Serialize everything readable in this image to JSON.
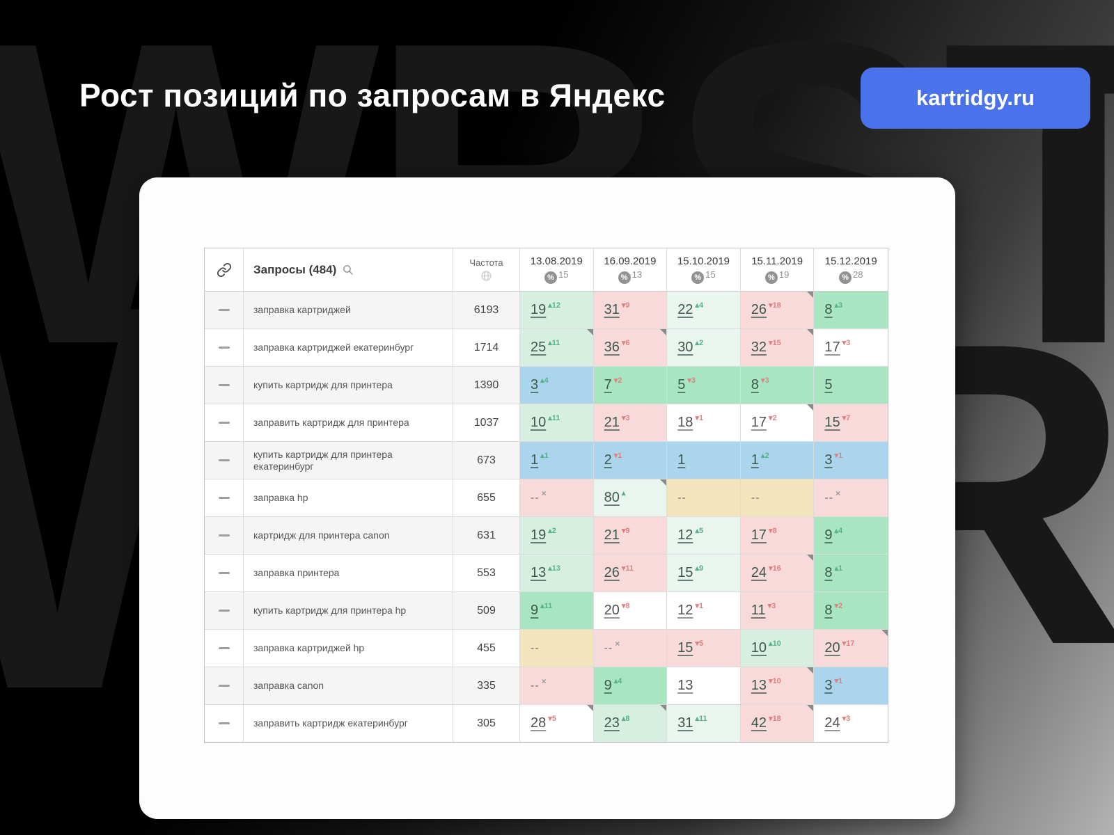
{
  "title": "Рост позиций по запросам в Яндекс",
  "badge_label": "kartridgy.ru",
  "watermark_text": "WBSTR",
  "colors": {
    "badge_blue": "#4a72ea",
    "cell_green": "#a7e6c0",
    "cell_green_light": "#d7efe1",
    "cell_green_pale": "#e9f5ee",
    "cell_pink": "#f9dada",
    "cell_blue": "#abd4ed",
    "cell_tan": "#f3e4bc",
    "delta_up": "#55b28a",
    "delta_down": "#df8080"
  },
  "table": {
    "header": {
      "link_icon": "link-icon",
      "queries_label": "Запросы (484)",
      "frequency_label": "Частота",
      "dates": [
        {
          "date": "13.08.2019",
          "percent": "15"
        },
        {
          "date": "16.09.2019",
          "percent": "13"
        },
        {
          "date": "15.10.2019",
          "percent": "15"
        },
        {
          "date": "15.11.2019",
          "percent": "19"
        },
        {
          "date": "15.12.2019",
          "percent": "28"
        }
      ]
    },
    "rows": [
      {
        "query": "заправка картриджей",
        "frequency": "6193",
        "cells": [
          {
            "pos": "19",
            "dir": "up",
            "delta": "12",
            "bg": "green-light"
          },
          {
            "pos": "31",
            "dir": "down",
            "delta": "9",
            "bg": "pink"
          },
          {
            "pos": "22",
            "dir": "up",
            "delta": "4",
            "bg": "green-pale"
          },
          {
            "pos": "26",
            "dir": "down",
            "delta": "18",
            "bg": "pink",
            "corner": true
          },
          {
            "pos": "8",
            "dir": "up",
            "delta": "3",
            "bg": "green"
          }
        ]
      },
      {
        "query": "заправка картриджей екатеринбург",
        "frequency": "1714",
        "cells": [
          {
            "pos": "25",
            "dir": "up",
            "delta": "11",
            "bg": "green-light",
            "corner": true
          },
          {
            "pos": "36",
            "dir": "down",
            "delta": "6",
            "bg": "pink",
            "corner": true
          },
          {
            "pos": "30",
            "dir": "up",
            "delta": "2",
            "bg": "green-pale"
          },
          {
            "pos": "32",
            "dir": "down",
            "delta": "15",
            "bg": "pink",
            "corner": true
          },
          {
            "pos": "17",
            "dir": "down",
            "delta": "3",
            "bg": "white"
          }
        ]
      },
      {
        "query": "купить картридж для принтера",
        "frequency": "1390",
        "cells": [
          {
            "pos": "3",
            "dir": "up",
            "delta": "4",
            "bg": "blue"
          },
          {
            "pos": "7",
            "dir": "down",
            "delta": "2",
            "bg": "green"
          },
          {
            "pos": "5",
            "dir": "down",
            "delta": "3",
            "bg": "green"
          },
          {
            "pos": "8",
            "dir": "down",
            "delta": "3",
            "bg": "green"
          },
          {
            "pos": "5",
            "dir": null,
            "delta": "",
            "bg": "green"
          }
        ]
      },
      {
        "query": "заправить картридж для принтера",
        "frequency": "1037",
        "cells": [
          {
            "pos": "10",
            "dir": "up",
            "delta": "11",
            "bg": "green-light"
          },
          {
            "pos": "21",
            "dir": "down",
            "delta": "3",
            "bg": "pink"
          },
          {
            "pos": "18",
            "dir": "down",
            "delta": "1",
            "bg": "white"
          },
          {
            "pos": "17",
            "dir": "down",
            "delta": "2",
            "bg": "white",
            "corner": true
          },
          {
            "pos": "15",
            "dir": "down",
            "delta": "7",
            "bg": "pink"
          }
        ]
      },
      {
        "query": "купить картридж для принтера екатеринбург",
        "frequency": "673",
        "cells": [
          {
            "pos": "1",
            "dir": "up",
            "delta": "1",
            "bg": "blue"
          },
          {
            "pos": "2",
            "dir": "down",
            "delta": "1",
            "bg": "blue"
          },
          {
            "pos": "1",
            "dir": null,
            "delta": "",
            "bg": "blue"
          },
          {
            "pos": "1",
            "dir": "up",
            "delta": "2",
            "bg": "blue"
          },
          {
            "pos": "3",
            "dir": "down",
            "delta": "1",
            "bg": "blue"
          }
        ]
      },
      {
        "query": "заправка hp",
        "frequency": "655",
        "cells": [
          {
            "pos": "--",
            "dir": "x",
            "delta": "",
            "bg": "pink"
          },
          {
            "pos": "80",
            "dir": "up",
            "delta": "",
            "bg": "green-pale",
            "corner": true
          },
          {
            "pos": "--",
            "dir": null,
            "delta": "",
            "bg": "tan"
          },
          {
            "pos": "--",
            "dir": null,
            "delta": "",
            "bg": "tan"
          },
          {
            "pos": "--",
            "dir": "x",
            "delta": "",
            "bg": "pink"
          }
        ]
      },
      {
        "query": "картридж для принтера canon",
        "frequency": "631",
        "cells": [
          {
            "pos": "19",
            "dir": "up",
            "delta": "2",
            "bg": "green-light"
          },
          {
            "pos": "21",
            "dir": "down",
            "delta": "9",
            "bg": "pink"
          },
          {
            "pos": "12",
            "dir": "up",
            "delta": "5",
            "bg": "green-pale"
          },
          {
            "pos": "17",
            "dir": "down",
            "delta": "8",
            "bg": "pink"
          },
          {
            "pos": "9",
            "dir": "up",
            "delta": "4",
            "bg": "green"
          }
        ]
      },
      {
        "query": "заправка принтера",
        "frequency": "553",
        "cells": [
          {
            "pos": "13",
            "dir": "up",
            "delta": "13",
            "bg": "green-light"
          },
          {
            "pos": "26",
            "dir": "down",
            "delta": "11",
            "bg": "pink"
          },
          {
            "pos": "15",
            "dir": "up",
            "delta": "9",
            "bg": "green-pale"
          },
          {
            "pos": "24",
            "dir": "down",
            "delta": "16",
            "bg": "pink",
            "corner": true
          },
          {
            "pos": "8",
            "dir": "up",
            "delta": "1",
            "bg": "green"
          }
        ]
      },
      {
        "query": "купить картридж для принтера hp",
        "frequency": "509",
        "cells": [
          {
            "pos": "9",
            "dir": "up",
            "delta": "11",
            "bg": "green"
          },
          {
            "pos": "20",
            "dir": "down",
            "delta": "8",
            "bg": "white"
          },
          {
            "pos": "12",
            "dir": "down",
            "delta": "1",
            "bg": "white"
          },
          {
            "pos": "11",
            "dir": "down",
            "delta": "3",
            "bg": "pink"
          },
          {
            "pos": "8",
            "dir": "down",
            "delta": "2",
            "bg": "green"
          }
        ]
      },
      {
        "query": "заправка картриджей hp",
        "frequency": "455",
        "cells": [
          {
            "pos": "--",
            "dir": null,
            "delta": "",
            "bg": "tan"
          },
          {
            "pos": "--",
            "dir": "x",
            "delta": "",
            "bg": "pink"
          },
          {
            "pos": "15",
            "dir": "down",
            "delta": "5",
            "bg": "pink"
          },
          {
            "pos": "10",
            "dir": "up",
            "delta": "10",
            "bg": "green-light"
          },
          {
            "pos": "20",
            "dir": "down",
            "delta": "17",
            "bg": "pink",
            "corner": true
          }
        ]
      },
      {
        "query": "заправка canon",
        "frequency": "335",
        "cells": [
          {
            "pos": "--",
            "dir": "x",
            "delta": "",
            "bg": "pink"
          },
          {
            "pos": "9",
            "dir": "up",
            "delta": "4",
            "bg": "green"
          },
          {
            "pos": "13",
            "dir": null,
            "delta": "",
            "bg": "white"
          },
          {
            "pos": "13",
            "dir": "down",
            "delta": "10",
            "bg": "pink",
            "corner": true
          },
          {
            "pos": "3",
            "dir": "down",
            "delta": "1",
            "bg": "blue"
          }
        ]
      },
      {
        "query": "заправить картридж екатеринбург",
        "frequency": "305",
        "cells": [
          {
            "pos": "28",
            "dir": "down",
            "delta": "5",
            "bg": "white",
            "corner": true
          },
          {
            "pos": "23",
            "dir": "up",
            "delta": "8",
            "bg": "green-light",
            "corner": true
          },
          {
            "pos": "31",
            "dir": "up",
            "delta": "11",
            "bg": "green-pale"
          },
          {
            "pos": "42",
            "dir": "down",
            "delta": "18",
            "bg": "pink",
            "corner": true
          },
          {
            "pos": "24",
            "dir": "down",
            "delta": "3",
            "bg": "white"
          }
        ]
      }
    ]
  }
}
